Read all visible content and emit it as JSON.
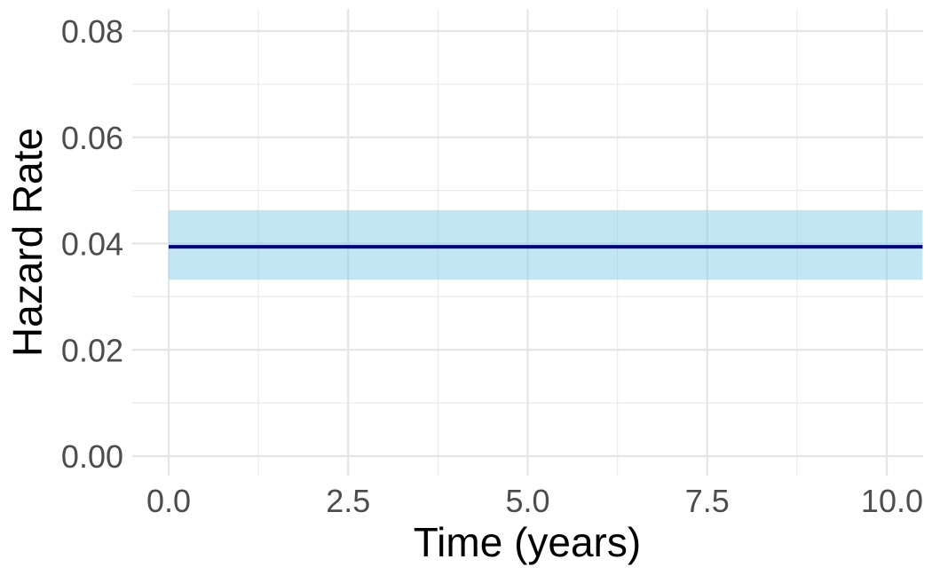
{
  "chart_data": {
    "type": "line",
    "title": "",
    "xlabel": "Time (years)",
    "ylabel": "Hazard Rate",
    "xlim": [
      0,
      10.5
    ],
    "ylim": [
      0,
      0.08
    ],
    "x_ticks": [
      0,
      2.5,
      5,
      7.5,
      10
    ],
    "x_tick_labels": [
      "0.0",
      "2.5",
      "5.0",
      "7.5",
      "10.0"
    ],
    "y_ticks": [
      0,
      0.02,
      0.04,
      0.06,
      0.08
    ],
    "y_tick_labels": [
      "0.00",
      "0.02",
      "0.04",
      "0.06",
      "0.08"
    ],
    "grid": true,
    "legend": "none",
    "series": [
      {
        "x": [
          0,
          10.5
        ],
        "y": [
          0.0394,
          0.0394
        ],
        "lower": [
          0.0332,
          0.0332
        ],
        "upper": [
          0.0463,
          0.0463
        ],
        "line_color": "#000080",
        "band_color": "#87ceeb"
      }
    ]
  }
}
